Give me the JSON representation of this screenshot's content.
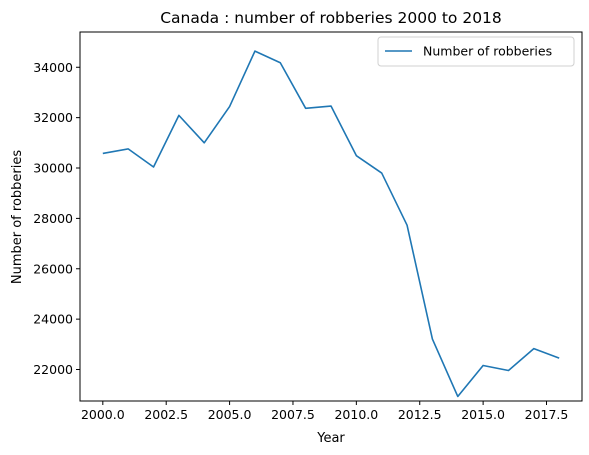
{
  "chart_data": {
    "type": "line",
    "title": "Canada : number of robberies 2000 to 2018",
    "xlabel": "Year",
    "ylabel": "Number of robberies",
    "x": [
      2000,
      2001,
      2002,
      2003,
      2004,
      2005,
      2006,
      2007,
      2008,
      2009,
      2010,
      2011,
      2012,
      2013,
      2014,
      2015,
      2016,
      2017,
      2018
    ],
    "series": [
      {
        "name": "Number of robberies",
        "color": "#1f77b4",
        "values": [
          30580,
          30760,
          30040,
          32090,
          31000,
          32440,
          34640,
          34180,
          32370,
          32460,
          30490,
          29800,
          27730,
          23210,
          20930,
          22160,
          21960,
          22830,
          22450
        ]
      }
    ],
    "xlim": [
      1999.1,
      2018.9
    ],
    "ylim": [
      20750,
      35400
    ],
    "xticks": [
      2000.0,
      2002.5,
      2005.0,
      2007.5,
      2010.0,
      2012.5,
      2015.0,
      2017.5
    ],
    "xtick_labels": [
      "2000.0",
      "2002.5",
      "2005.0",
      "2007.5",
      "2010.0",
      "2012.5",
      "2015.0",
      "2017.5"
    ],
    "yticks": [
      22000,
      24000,
      26000,
      28000,
      30000,
      32000,
      34000
    ],
    "ytick_labels": [
      "22000",
      "24000",
      "26000",
      "28000",
      "30000",
      "32000",
      "34000"
    ],
    "grid": false,
    "legend_position": "top-right"
  }
}
